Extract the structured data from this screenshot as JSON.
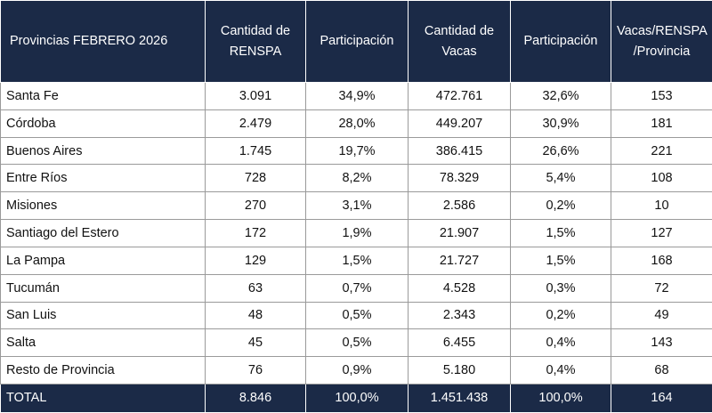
{
  "table": {
    "header": [
      "Provincias FEBRERO 2026",
      "Cantidad de RENSPA",
      "Participación",
      "Cantidad de Vacas",
      "Participación",
      "Vacas/RENSPA /Provincia"
    ],
    "rows": [
      [
        "Santa Fe",
        "3.091",
        "34,9%",
        "472.761",
        "32,6%",
        "153"
      ],
      [
        "Córdoba",
        "2.479",
        "28,0%",
        "449.207",
        "30,9%",
        "181"
      ],
      [
        "Buenos Aires",
        "1.745",
        "19,7%",
        "386.415",
        "26,6%",
        "221"
      ],
      [
        "Entre Ríos",
        "728",
        "8,2%",
        "78.329",
        "5,4%",
        "108"
      ],
      [
        "Misiones",
        "270",
        "3,1%",
        "2.586",
        "0,2%",
        "10"
      ],
      [
        "Santiago del Estero",
        "172",
        "1,9%",
        "21.907",
        "1,5%",
        "127"
      ],
      [
        "La Pampa",
        "129",
        "1,5%",
        "21.727",
        "1,5%",
        "168"
      ],
      [
        "Tucumán",
        "63",
        "0,7%",
        "4.528",
        "0,3%",
        "72"
      ],
      [
        "San Luis",
        "48",
        "0,5%",
        "2.343",
        "0,2%",
        "49"
      ],
      [
        "Salta",
        "45",
        "0,5%",
        "6.455",
        "0,4%",
        "143"
      ],
      [
        "Resto de Provincia",
        "76",
        "0,9%",
        "5.180",
        "0,4%",
        "68"
      ]
    ],
    "total": [
      "TOTAL",
      "8.846",
      "100,0%",
      "1.451.438",
      "100,0%",
      "164"
    ]
  }
}
